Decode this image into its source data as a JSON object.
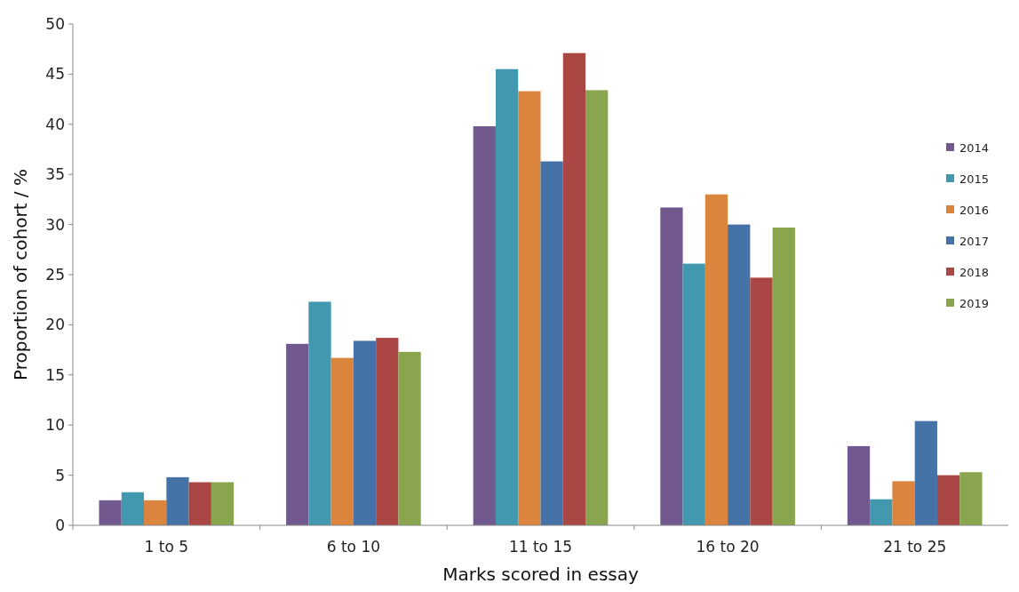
{
  "chart_data": {
    "type": "bar",
    "xlabel": "Marks scored in essay",
    "ylabel": "Proportion of cohort / %",
    "categories": [
      "1 to 5",
      "6 to 10",
      "11 to 15",
      "16 to 20",
      "21 to 25"
    ],
    "series": [
      {
        "name": "2014",
        "color": "#71588f",
        "values": [
          2.5,
          18.1,
          39.8,
          31.7,
          7.9
        ]
      },
      {
        "name": "2015",
        "color": "#4198af",
        "values": [
          3.3,
          22.3,
          45.5,
          26.1,
          2.6
        ]
      },
      {
        "name": "2016",
        "color": "#db843d",
        "values": [
          2.5,
          16.7,
          43.3,
          33.0,
          4.4
        ]
      },
      {
        "name": "2017",
        "color": "#4572a7",
        "values": [
          4.8,
          18.4,
          36.3,
          30.0,
          10.4
        ]
      },
      {
        "name": "2018",
        "color": "#aa4643",
        "values": [
          4.3,
          18.7,
          47.1,
          24.7,
          5.0
        ]
      },
      {
        "name": "2019",
        "color": "#89a54e",
        "values": [
          4.3,
          17.3,
          43.4,
          29.7,
          5.3
        ]
      }
    ],
    "ylim": [
      0,
      50
    ],
    "yticks": [
      0,
      5,
      10,
      15,
      20,
      25,
      30,
      35,
      40,
      45,
      50
    ],
    "legend": "right"
  }
}
